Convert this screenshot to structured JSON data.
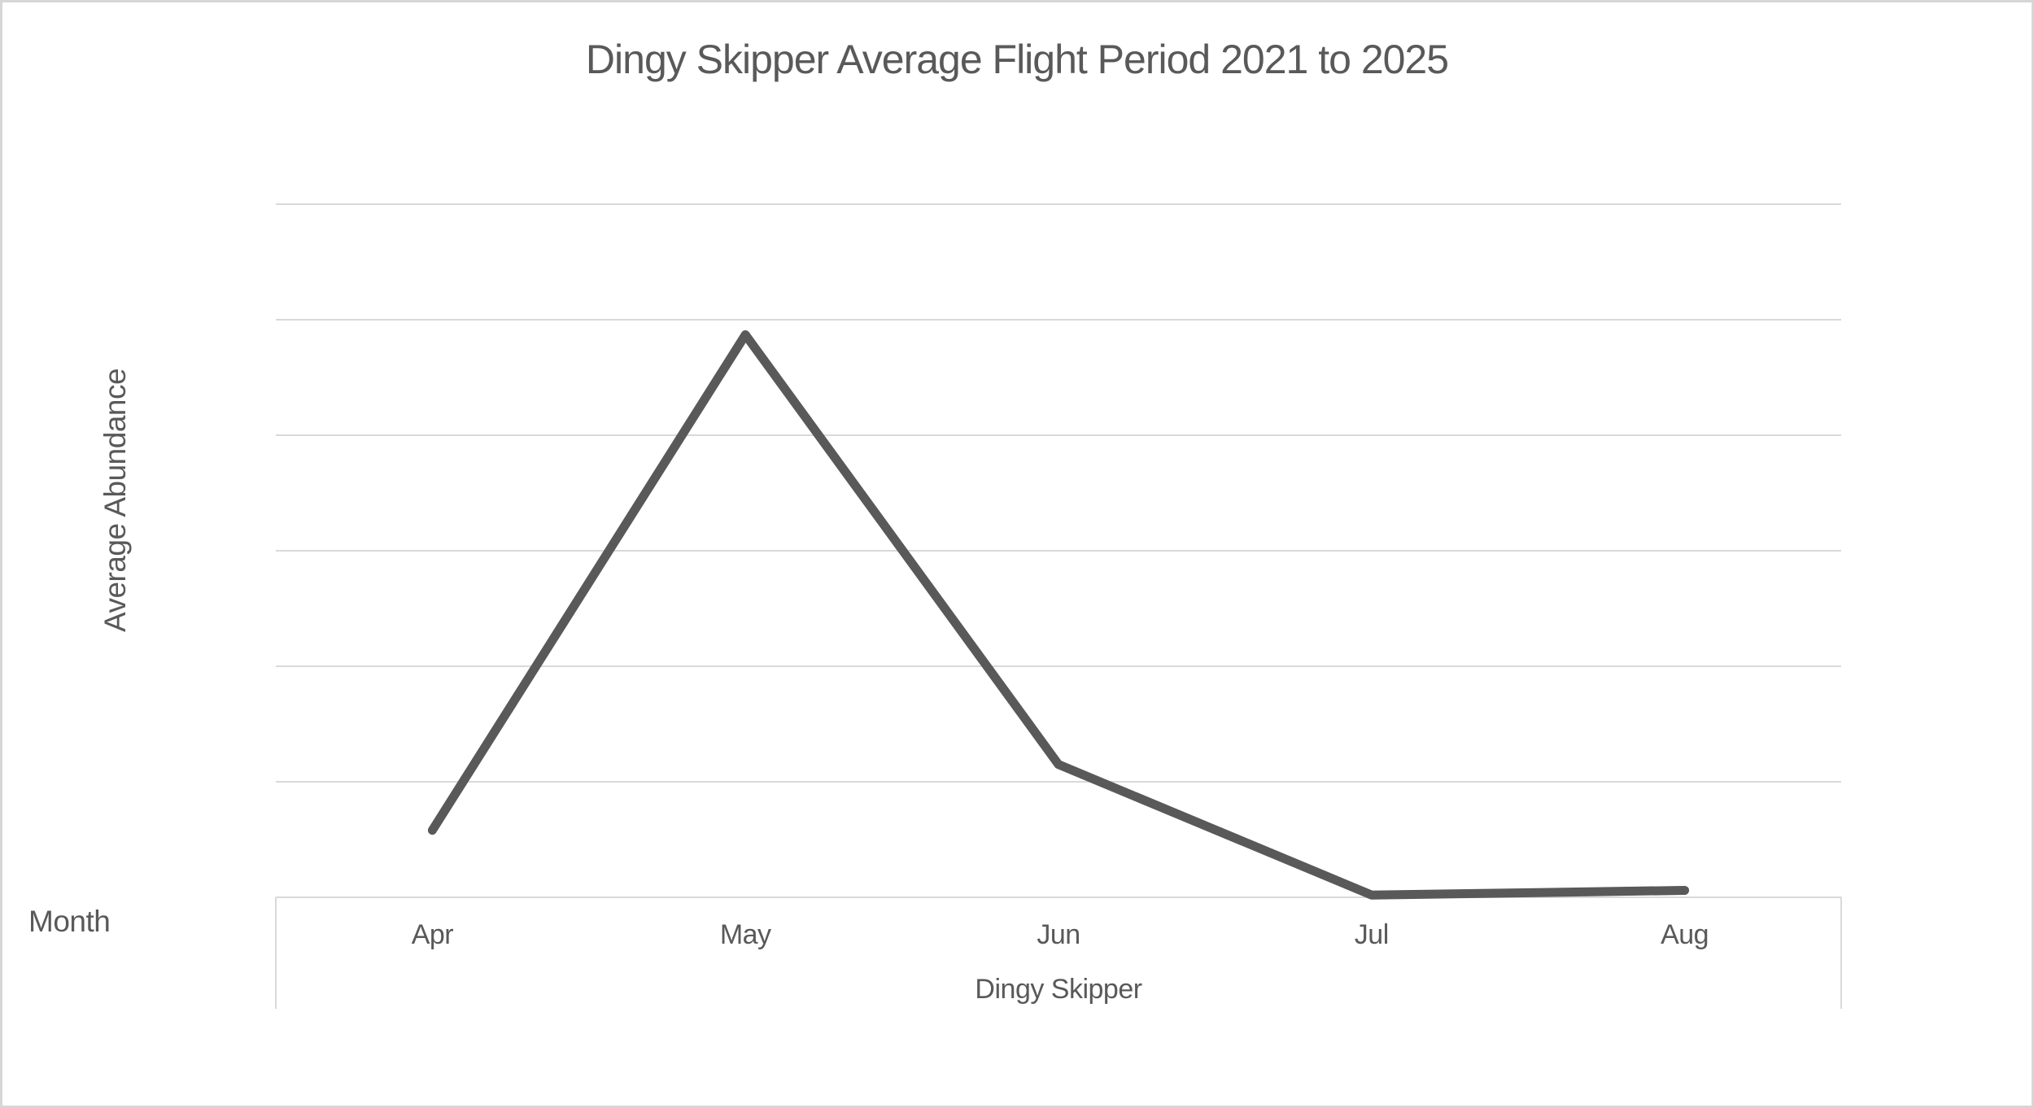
{
  "chart_data": {
    "type": "line",
    "title": "Dingy Skipper Average Flight Period 2021 to 2025",
    "xlabel": "Month",
    "ylabel": "Average Abundance",
    "categories": [
      "Apr",
      "May",
      "Jun",
      "Jul",
      "Aug"
    ],
    "series": [
      {
        "name": "Dingy Skipper",
        "values": [
          0.58,
          4.87,
          1.15,
          0.02,
          0.06
        ]
      }
    ],
    "ylim": [
      0,
      6
    ],
    "gridline_step": 1,
    "y_tick_labels": "hidden",
    "grid": "horizontal",
    "legend": "none",
    "colors": {
      "line": "#595959",
      "gridline": "#d9d9d9",
      "axis_line": "#d9d9d9",
      "text": "#595959",
      "frame_border": "#d6d6d6"
    }
  }
}
